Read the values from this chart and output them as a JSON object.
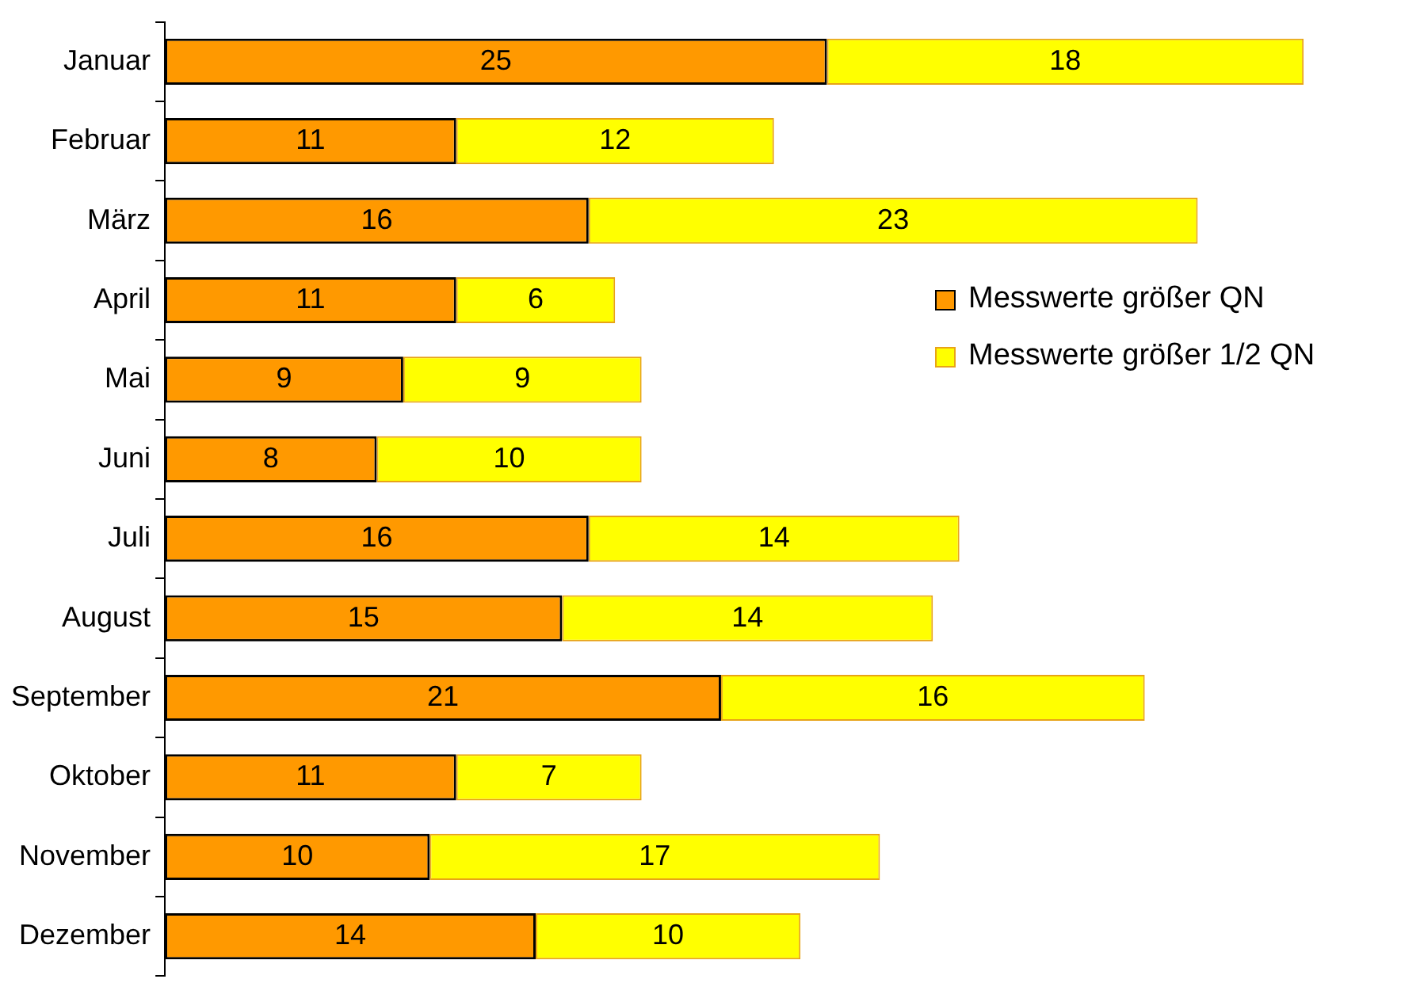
{
  "chart_data": {
    "type": "bar",
    "orientation": "horizontal",
    "stacked": true,
    "data_labels": true,
    "legend": "right",
    "tick_labels": "y",
    "categories": [
      "Januar",
      "Februar",
      "März",
      "April",
      "Mai",
      "Juni",
      "Juli",
      "August",
      "September",
      "Oktober",
      "November",
      "Dezember"
    ],
    "series": [
      {
        "name": "Messwerte größer QN",
        "color": "#ff9900",
        "values": [
          25,
          11,
          16,
          11,
          9,
          8,
          16,
          15,
          21,
          11,
          10,
          14
        ]
      },
      {
        "name": "Messwerte größer 1/2 QN",
        "color": "#ffff00",
        "values": [
          18,
          12,
          23,
          6,
          9,
          10,
          14,
          14,
          16,
          7,
          17,
          10
        ]
      }
    ]
  }
}
